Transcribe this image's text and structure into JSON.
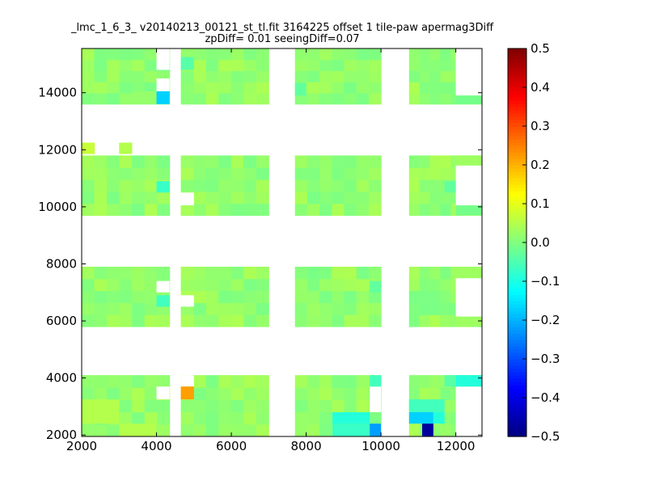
{
  "chart_data": {
    "type": "heatmap",
    "title_line1": "_lmc_1_6_3_ v20140213_00121_st_tl.fit 3164225 offset 1 tile-paw apermag3Diff",
    "title_line2": "zpDiff= 0.01 seeingDiff=0.07",
    "xlabel": "",
    "ylabel": "",
    "xlim": [
      2000,
      12700
    ],
    "ylim": [
      1950,
      15550
    ],
    "xticks": [
      2000,
      4000,
      6000,
      8000,
      10000,
      12000
    ],
    "yticks": [
      2000,
      4000,
      6000,
      8000,
      10000,
      12000,
      14000
    ],
    "colorbar": {
      "cmap": "jet",
      "range": [
        -0.5,
        0.5
      ],
      "ticks": [
        -0.5,
        -0.4,
        -0.3,
        -0.2,
        -0.1,
        0.0,
        0.1,
        0.2,
        0.3,
        0.4,
        0.5
      ],
      "tick_labels": [
        "−0.5",
        "−0.4",
        "−0.3",
        "−0.2",
        "−0.1",
        "0.0",
        "0.1",
        "0.2",
        "0.3",
        "0.4",
        "0.5"
      ]
    },
    "columns": [
      {
        "x0": 2000,
        "x1": 4350
      },
      {
        "x0": 4650,
        "x1": 7000
      },
      {
        "x0": 7700,
        "x1": 10000
      },
      {
        "x0": 10750,
        "x1": 12700
      }
    ],
    "rows": [
      {
        "y0": 1950,
        "y1": 4100
      },
      {
        "y0": 5800,
        "y1": 7900
      },
      {
        "y0": 9700,
        "y1": 11800
      },
      {
        "y0": 13600,
        "y1": 15550
      }
    ],
    "base_value": 0.02,
    "cells": [
      {
        "x0": 2000,
        "x1": 2350,
        "y0": 11850,
        "y1": 12250,
        "value": 0.07
      },
      {
        "x0": 3000,
        "x1": 3350,
        "y0": 11850,
        "y1": 12250,
        "value": 0.05
      },
      {
        "x0": 4000,
        "x1": 4350,
        "y0": 13600,
        "y1": 14050,
        "value": -0.17
      },
      {
        "x0": 3350,
        "x1": 4000,
        "y0": 13600,
        "y1": 14050,
        "value": 0.02
      },
      {
        "x0": 4650,
        "x1": 5000,
        "y0": 14800,
        "y1": 15250,
        "value": -0.04
      },
      {
        "x0": 7700,
        "x1": 8000,
        "y0": 13900,
        "y1": 14350,
        "value": -0.03
      },
      {
        "x0": 12000,
        "x1": 12700,
        "y0": 13600,
        "y1": 13900,
        "value": -0.01
      },
      {
        "x0": 4000,
        "x1": 4350,
        "y0": 10500,
        "y1": 10900,
        "value": -0.07
      },
      {
        "x0": 4650,
        "x1": 5000,
        "y0": 9700,
        "y1": 10050,
        "value": 0.04
      },
      {
        "x0": 11700,
        "x1": 12000,
        "y0": 10500,
        "y1": 10900,
        "value": -0.03
      },
      {
        "x0": 12000,
        "x1": 12700,
        "y0": 11450,
        "y1": 11800,
        "value": 0.03
      },
      {
        "x0": 12000,
        "x1": 12700,
        "y0": 9700,
        "y1": 10050,
        "value": -0.01
      },
      {
        "x0": 4000,
        "x1": 4350,
        "y0": 6500,
        "y1": 6900,
        "value": -0.06
      },
      {
        "x0": 9700,
        "x1": 10000,
        "y0": 7000,
        "y1": 7400,
        "value": -0.03
      },
      {
        "x0": 12000,
        "x1": 12700,
        "y0": 7500,
        "y1": 7900,
        "value": 0.03
      },
      {
        "x0": 12000,
        "x1": 12700,
        "y0": 5800,
        "y1": 6150,
        "value": 0.03
      },
      {
        "x0": 4650,
        "x1": 5000,
        "y0": 3250,
        "y1": 3700,
        "value": 0.22
      },
      {
        "x0": 9700,
        "x1": 10000,
        "y0": 3700,
        "y1": 4100,
        "value": -0.06
      },
      {
        "x0": 8700,
        "x1": 9700,
        "y0": 2400,
        "y1": 2800,
        "value": -0.09
      },
      {
        "x0": 8700,
        "x1": 9700,
        "y0": 1950,
        "y1": 2400,
        "value": -0.07
      },
      {
        "x0": 9700,
        "x1": 10000,
        "y0": 1950,
        "y1": 2400,
        "value": -0.22
      },
      {
        "x0": 10000,
        "x1": 10000,
        "y0": 1950,
        "y1": 1950,
        "value": 0.0
      },
      {
        "x0": 10750,
        "x1": 11700,
        "y0": 2800,
        "y1": 3250,
        "value": -0.06
      },
      {
        "x0": 10750,
        "x1": 11400,
        "y0": 2400,
        "y1": 2800,
        "value": -0.17
      },
      {
        "x0": 11400,
        "x1": 11700,
        "y0": 2400,
        "y1": 2800,
        "value": -0.09
      },
      {
        "x0": 11100,
        "x1": 11400,
        "y0": 1950,
        "y1": 2400,
        "value": -0.47
      },
      {
        "x0": 11700,
        "x1": 12000,
        "y0": 3700,
        "y1": 4100,
        "value": -0.04
      },
      {
        "x0": 12000,
        "x1": 12700,
        "y0": 3700,
        "y1": 4100,
        "value": -0.09
      },
      {
        "x0": 2000,
        "x1": 3000,
        "y0": 2400,
        "y1": 3250,
        "value": 0.05
      },
      {
        "x0": 3000,
        "x1": 4000,
        "y0": 1950,
        "y1": 2400,
        "value": 0.05
      }
    ],
    "gaps": [
      {
        "x0": 4000,
        "x1": 4350,
        "y0": 3250,
        "y1": 3700
      },
      {
        "x0": 4650,
        "x1": 5000,
        "y0": 3700,
        "y1": 4100
      },
      {
        "x0": 9700,
        "x1": 10000,
        "y0": 2800,
        "y1": 3700
      },
      {
        "x0": 12000,
        "x1": 12700,
        "y0": 1950,
        "y1": 3700
      },
      {
        "x0": 4650,
        "x1": 5000,
        "y0": 6500,
        "y1": 6900
      },
      {
        "x0": 4000,
        "x1": 4350,
        "y0": 7000,
        "y1": 7400
      },
      {
        "x0": 12000,
        "x1": 12700,
        "y0": 6150,
        "y1": 7500
      },
      {
        "x0": 4650,
        "x1": 5000,
        "y0": 10050,
        "y1": 10500
      },
      {
        "x0": 12000,
        "x1": 12700,
        "y0": 10050,
        "y1": 11450
      },
      {
        "x0": 4000,
        "x1": 4350,
        "y0": 14050,
        "y1": 14500
      },
      {
        "x0": 4000,
        "x1": 4350,
        "y0": 14800,
        "y1": 15550
      },
      {
        "x0": 12000,
        "x1": 12700,
        "y0": 13900,
        "y1": 15550
      }
    ]
  }
}
